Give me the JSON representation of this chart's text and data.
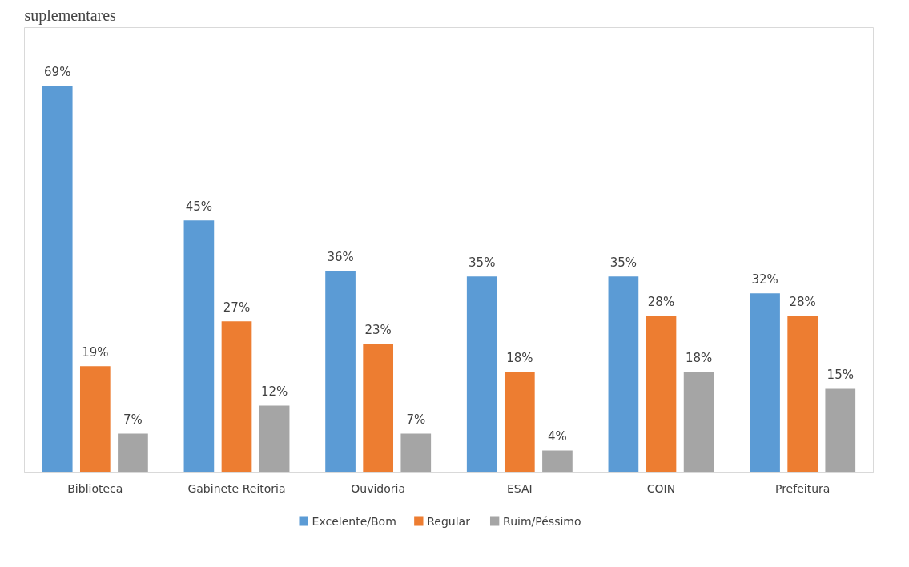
{
  "chart_data": {
    "type": "bar",
    "title": "suplementares",
    "categories": [
      "Biblioteca",
      "Gabinete Reitoria",
      "Ouvidoria",
      "ESAI",
      "COIN",
      "Prefeitura"
    ],
    "series": [
      {
        "name": "Excelente/Bom",
        "color": "#5b9bd5",
        "values": [
          69,
          45,
          36,
          35,
          35,
          32
        ],
        "value_labels": [
          "69%",
          "45%",
          "36%",
          "35%",
          "35%",
          "32%"
        ]
      },
      {
        "name": "Regular",
        "color": "#ed7d31",
        "values": [
          19,
          27,
          23,
          18,
          28,
          28
        ],
        "value_labels": [
          "19%",
          "27%",
          "23%",
          "18%",
          "28%",
          "28%"
        ]
      },
      {
        "name": "Ruim/Péssimo",
        "color": "#a5a5a5",
        "values": [
          7,
          12,
          7,
          4,
          18,
          15
        ],
        "value_labels": [
          "7%",
          "12%",
          "7%",
          "4%",
          "18%",
          "15%"
        ]
      }
    ],
    "legend": "bottom",
    "grid": false
  }
}
